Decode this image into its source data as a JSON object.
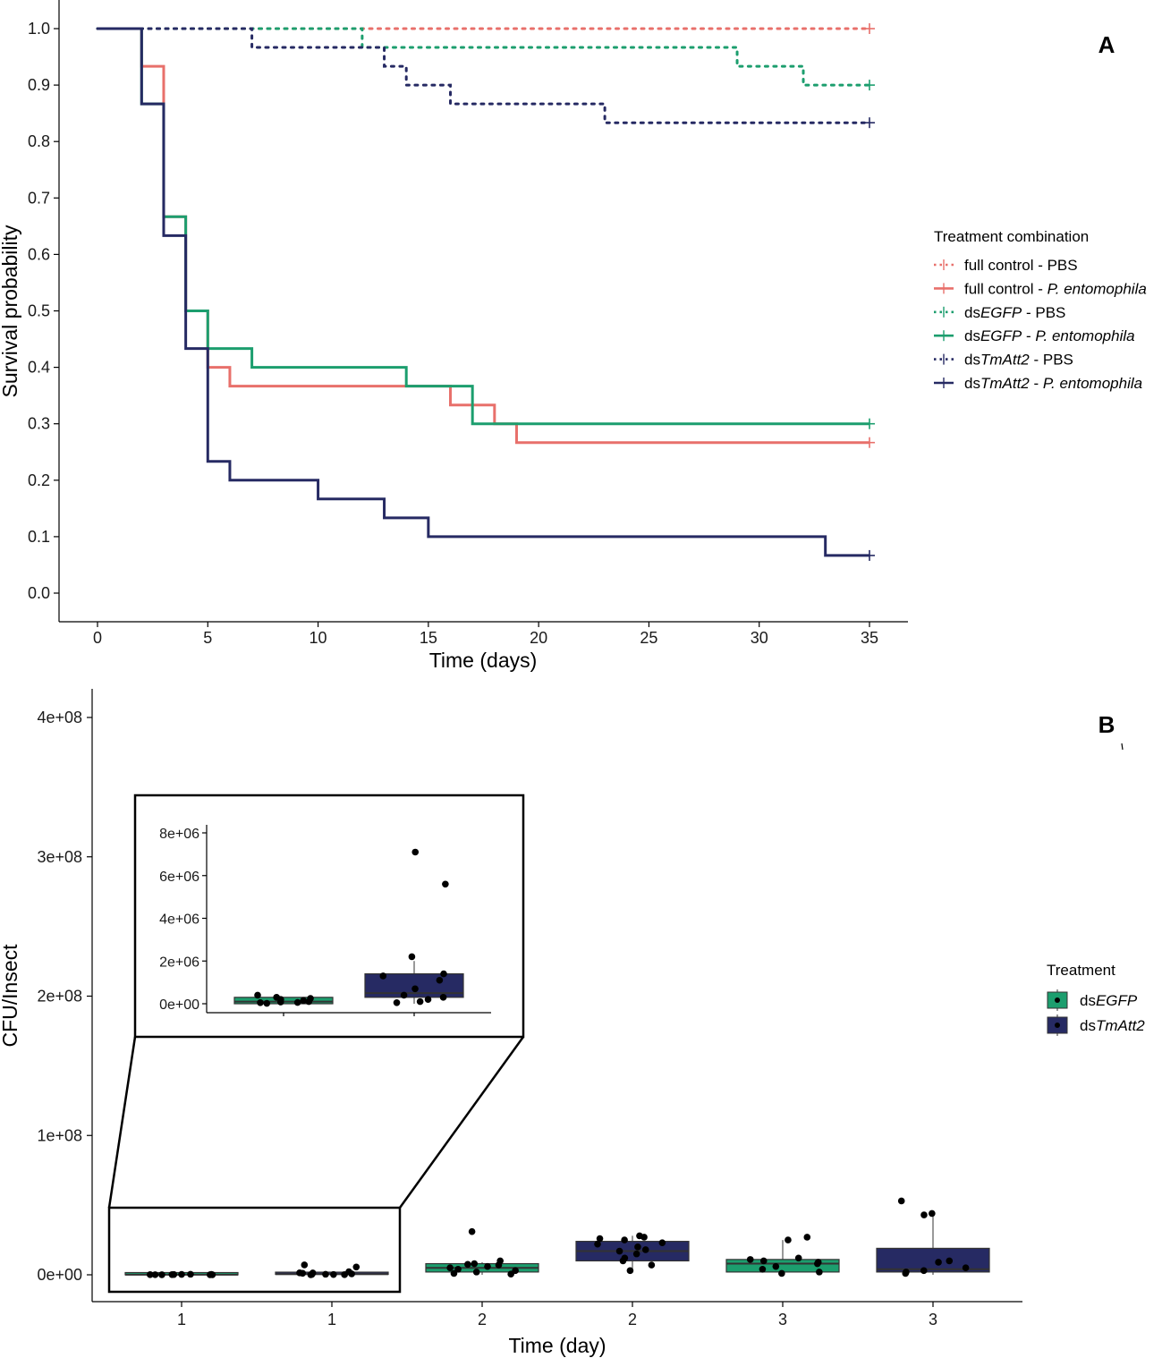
{
  "chart_data": [
    {
      "panel": "A",
      "type": "line",
      "subtype": "kaplan-meier-step",
      "xlabel": "Time (days)",
      "ylabel": "Survival probability",
      "xlim": [
        0,
        35
      ],
      "ylim": [
        0,
        1
      ],
      "xticks": [
        0,
        5,
        10,
        15,
        20,
        25,
        30,
        35
      ],
      "yticks": [
        0.0,
        0.1,
        0.2,
        0.3,
        0.4,
        0.5,
        0.6,
        0.7,
        0.8,
        0.9,
        1.0
      ],
      "yticklabels": [
        "0.0",
        "0.1",
        "0.2",
        "0.3",
        "0.4",
        "0.5",
        "0.6",
        "0.7",
        "0.8",
        "0.9",
        "1.0"
      ],
      "grid": false,
      "legend": {
        "title": "Treatment combination",
        "position": "right",
        "entries": [
          {
            "prefix": "full control - ",
            "italic": "",
            "suffix": "PBS"
          },
          {
            "prefix": "full control - ",
            "italic": "P. entomophila",
            "suffix": ""
          },
          {
            "prefix": "ds",
            "italic": "EGFP",
            "suffix": " - PBS"
          },
          {
            "prefix": "ds",
            "italic": "EGFP",
            "suffix": " - ",
            "italic2": "P. entomophila"
          },
          {
            "prefix": "ds",
            "italic": "TmAtt2",
            "suffix": " - PBS"
          },
          {
            "prefix": "ds",
            "italic": "TmAtt2",
            "suffix": " - ",
            "italic2": "P. entomophila"
          }
        ]
      },
      "series": [
        {
          "name": "full control - PBS",
          "color": "#e8706b",
          "dashed": true,
          "x": [
            0,
            35
          ],
          "y": [
            1.0,
            1.0
          ]
        },
        {
          "name": "full control - P. entomophila",
          "color": "#e8706b",
          "dashed": false,
          "x": [
            0,
            2,
            3,
            4,
            5,
            6,
            16,
            17,
            18,
            19,
            35
          ],
          "y": [
            1.0,
            0.9333,
            0.6667,
            0.5,
            0.4,
            0.3667,
            0.3333,
            0.3333,
            0.3,
            0.2667,
            0.2667
          ]
        },
        {
          "name": "dsEGFP - PBS",
          "color": "#1c9e6e",
          "dashed": true,
          "x": [
            0,
            12,
            29,
            32,
            35
          ],
          "y": [
            1.0,
            0.9667,
            0.9333,
            0.9,
            0.9
          ]
        },
        {
          "name": "dsEGFP - P. entomophila",
          "color": "#1c9e6e",
          "dashed": false,
          "x": [
            0,
            2,
            3,
            4,
            5,
            7,
            14,
            17,
            35
          ],
          "y": [
            1.0,
            0.8667,
            0.6667,
            0.5,
            0.4333,
            0.4,
            0.3667,
            0.3,
            0.3
          ]
        },
        {
          "name": "dsTmAtt2 - PBS",
          "color": "#262a63",
          "dashed": true,
          "x": [
            0,
            7,
            13,
            14,
            16,
            23,
            35
          ],
          "y": [
            1.0,
            0.9667,
            0.9333,
            0.9,
            0.8667,
            0.8333,
            0.8333
          ]
        },
        {
          "name": "dsTmAtt2 - P. entomophila",
          "color": "#262a63",
          "dashed": false,
          "x": [
            0,
            2,
            3,
            4,
            5,
            6,
            10,
            13,
            15,
            33,
            35
          ],
          "y": [
            1.0,
            0.8667,
            0.6333,
            0.4333,
            0.2333,
            0.2,
            0.1667,
            0.1333,
            0.1,
            0.0667,
            0.0667
          ]
        }
      ]
    },
    {
      "panel": "B",
      "type": "box",
      "xlabel": "Time (day)",
      "ylabel": "CFU/Insect",
      "ylim": [
        0,
        400000000
      ],
      "yticks": [
        0,
        100000000,
        200000000,
        300000000,
        400000000
      ],
      "yticklabels": [
        "0e+00",
        "1e+08",
        "2e+08",
        "3e+08",
        "4e+08"
      ],
      "categories": [
        "1",
        "1",
        "2",
        "2",
        "3",
        "3"
      ],
      "grid": false,
      "legend": {
        "title": "Treatment",
        "position": "right",
        "entries": [
          {
            "prefix": "ds",
            "italic": "EGFP",
            "color": "#1c9e6e"
          },
          {
            "prefix": "ds",
            "italic": "TmAtt2",
            "color": "#262a63"
          }
        ]
      },
      "boxes": [
        {
          "category": "1",
          "treatment": "dsEGFP",
          "color": "#1c9e6e",
          "q1": 0,
          "median": 100000,
          "q3": 300000,
          "whisker_low": 0,
          "whisker_high": 300000,
          "points": [
            20000,
            50000,
            100000,
            200000,
            300000,
            80000,
            150000,
            250000,
            400000,
            60000
          ]
        },
        {
          "category": "1",
          "treatment": "dsTmAtt2",
          "color": "#262a63",
          "q1": 300000,
          "median": 500000,
          "q3": 1400000,
          "whisker_low": 0,
          "whisker_high": 2000000,
          "points": [
            7100000,
            5600000,
            2200000,
            1400000,
            1300000,
            1100000,
            700000,
            300000,
            200000,
            100000,
            50000,
            400000
          ]
        },
        {
          "category": "2",
          "treatment": "dsEGFP",
          "color": "#1c9e6e",
          "q1": 2000000,
          "median": 5000000,
          "q3": 8000000,
          "whisker_low": 0,
          "whisker_high": 9000000,
          "points": [
            31000000,
            10000000,
            8000000,
            7000000,
            6000000,
            5000000,
            4000000,
            3000000,
            2000000,
            1000000,
            7500000,
            500000
          ]
        },
        {
          "category": "2",
          "treatment": "dsTmAtt2",
          "color": "#262a63",
          "q1": 10000000,
          "median": 17000000,
          "q3": 24000000,
          "whisker_low": 2000000,
          "whisker_high": 28000000,
          "points": [
            28000000,
            27000000,
            26000000,
            25000000,
            23000000,
            22000000,
            20000000,
            18000000,
            17000000,
            15000000,
            12000000,
            10000000,
            7000000,
            3000000
          ]
        },
        {
          "category": "3",
          "treatment": "dsEGFP",
          "color": "#1c9e6e",
          "q1": 2000000,
          "median": 8000000,
          "q3": 11000000,
          "whisker_low": 1000000,
          "whisker_high": 25000000,
          "points": [
            27000000,
            25000000,
            12000000,
            11000000,
            10000000,
            9000000,
            8000000,
            6000000,
            4000000,
            2000000,
            1000000
          ]
        },
        {
          "category": "3",
          "treatment": "dsTmAtt2",
          "color": "#262a63",
          "q1": 2000000,
          "median": 4000000,
          "q3": 19000000,
          "whisker_low": 0,
          "whisker_high": 43000000,
          "points": [
            53000000,
            44000000,
            43000000,
            10000000,
            9000000,
            5000000,
            3000000,
            2000000,
            1000000
          ]
        }
      ],
      "inset": {
        "ylim": [
          0,
          8000000
        ],
        "yticks": [
          0,
          2000000,
          4000000,
          6000000,
          8000000
        ],
        "yticklabels": [
          "0e+00",
          "2e+06",
          "4e+06",
          "6e+06",
          "8e+06"
        ],
        "boxes_shown": [
          0,
          1
        ]
      }
    }
  ],
  "panel_labels": {
    "a": "A",
    "b": "B"
  }
}
